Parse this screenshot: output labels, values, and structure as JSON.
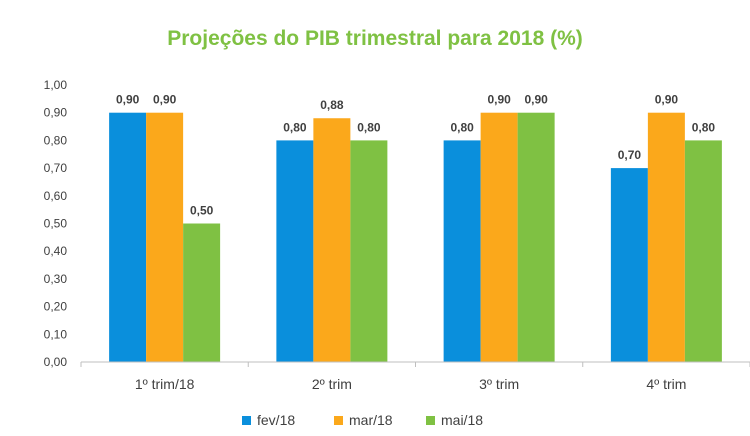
{
  "chart_data": {
    "type": "bar",
    "title": "Projeções do PIB trimestral para 2018 (%)",
    "categories": [
      "1º trim/18",
      "2º trim",
      "3º trim",
      "4º trim"
    ],
    "series": [
      {
        "name": "fev/18",
        "color": "#0a8fdc",
        "values": [
          0.9,
          0.8,
          0.8,
          0.7
        ]
      },
      {
        "name": "mar/18",
        "color": "#fba81b",
        "values": [
          0.9,
          0.88,
          0.9,
          0.9
        ]
      },
      {
        "name": "mai/18",
        "color": "#7fc143",
        "values": [
          0.5,
          0.8,
          0.9,
          0.8
        ]
      }
    ],
    "value_labels": [
      [
        "0,90",
        "0,80",
        "0,80",
        "0,70"
      ],
      [
        "0,90",
        "0,88",
        "0,90",
        "0,90"
      ],
      [
        "0,50",
        "0,80",
        "0,90",
        "0,80"
      ]
    ],
    "ylim": [
      0,
      1.0
    ],
    "yticks": [
      "0,00",
      "0,10",
      "0,20",
      "0,30",
      "0,40",
      "0,50",
      "0,60",
      "0,70",
      "0,80",
      "0,90",
      "1,00"
    ],
    "xlabel": "",
    "ylabel": "",
    "grid": false,
    "legend_position": "bottom",
    "title_color": "#7fc143"
  }
}
